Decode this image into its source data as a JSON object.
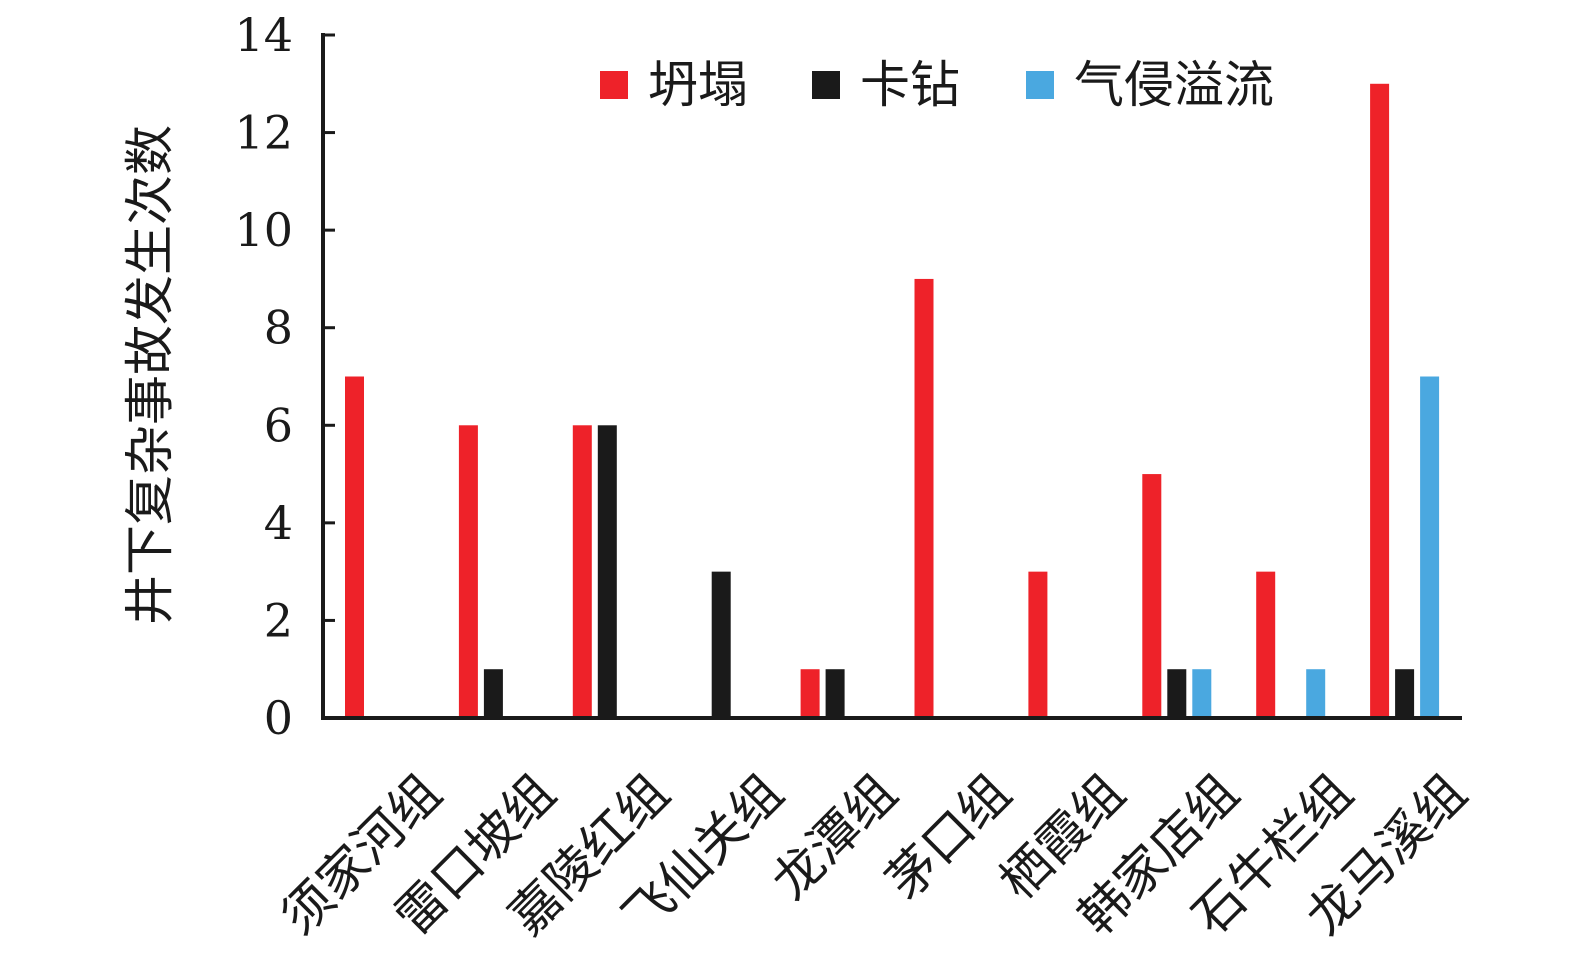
{
  "chart_data": {
    "type": "bar",
    "title": "",
    "xlabel": "",
    "ylabel": "井下复杂事故发生次数",
    "ylim": [
      0,
      14
    ],
    "yticks": [
      0,
      2,
      4,
      6,
      8,
      10,
      12,
      14
    ],
    "grid": false,
    "legend_position": "top-right",
    "categories": [
      "须家河组",
      "雷口坡组",
      "嘉陵红组",
      "飞仙关组",
      "龙潭组",
      "茅口组",
      "栖霞组",
      "韩家店组",
      "石牛栏组",
      "龙马溪组"
    ],
    "series": [
      {
        "name": "坍塌",
        "color": "#ee2229",
        "values": [
          7,
          6,
          6,
          0,
          1,
          9,
          3,
          5,
          3,
          13
        ]
      },
      {
        "name": "卡钻",
        "color": "#1a1a1a",
        "values": [
          0,
          1,
          6,
          3,
          1,
          0,
          0,
          1,
          0,
          1
        ]
      },
      {
        "name": "气侵溢流",
        "color": "#4aa8e0",
        "values": [
          0,
          0,
          0,
          0,
          0,
          0,
          0,
          1,
          1,
          7
        ]
      }
    ]
  }
}
